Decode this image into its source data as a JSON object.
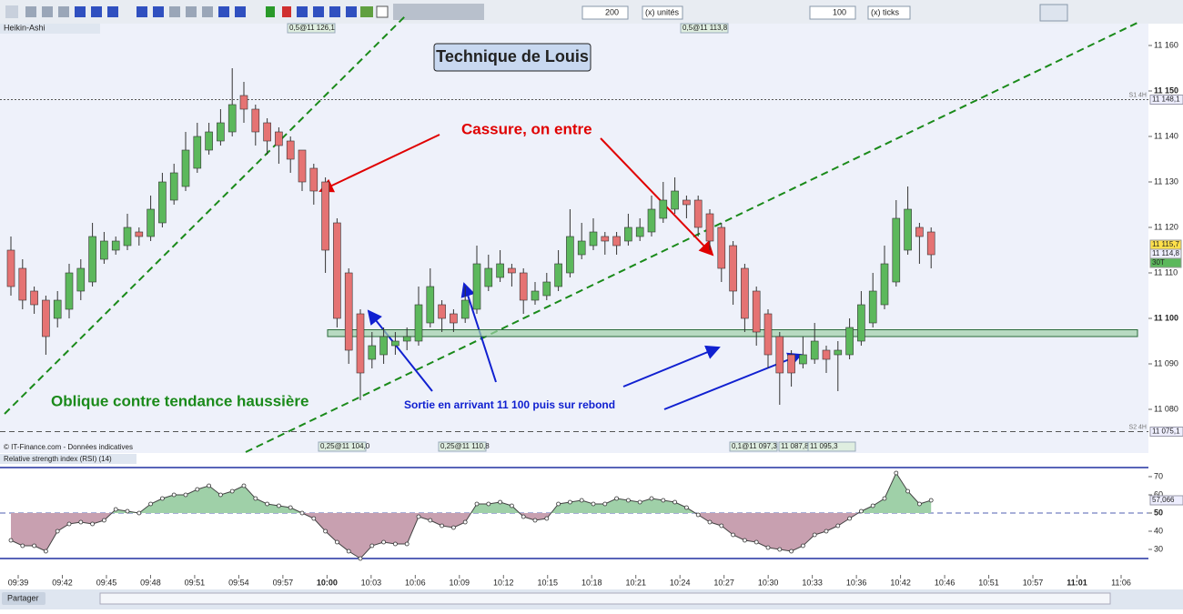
{
  "toolbar": {
    "units_value": "200",
    "units_label": "(x) unités",
    "ticks_value": "100",
    "ticks_label": "(x) ticks"
  },
  "chart_data": {
    "type": "candlestick",
    "name": "Heikin-Ashi",
    "title": "Technique de Louis",
    "annotations": [
      "Cassure, on entre",
      "Oblique contre tendance haussière",
      "Sortie en arrivant 11 100 puis sur rebond"
    ],
    "copyright": "© IT-Finance.com - Données indicatives",
    "order_labels_top": [
      "0,5@11 126,1",
      "0,5@11 113,8"
    ],
    "order_labels_bottom": [
      "0,25@11 104,0",
      "0,25@11 110,8",
      "0,1@11 097,3",
      "11 087,8",
      "11 095,3"
    ],
    "levels": [
      {
        "name": "S1 4H",
        "value": 11148.1,
        "label": "11 148,1"
      },
      {
        "name": "S2 4H",
        "value": 11075.1,
        "label": "11 075,1"
      }
    ],
    "price_labels": [
      "11 115,7",
      "11 114,8",
      "30T"
    ],
    "support_zone": [
      11096,
      11097.5
    ],
    "ylim": [
      11070,
      11165
    ],
    "yticks": [
      {
        "value": 11160,
        "label": "11 160"
      },
      {
        "value": 11150,
        "label": "11 150"
      },
      {
        "value": 11140,
        "label": "11 140"
      },
      {
        "value": 11130,
        "label": "11 130"
      },
      {
        "value": 11120,
        "label": "11 120"
      },
      {
        "value": 11110,
        "label": "11 110"
      },
      {
        "value": 11100,
        "label": "11 100"
      },
      {
        "value": 11090,
        "label": "11 090"
      },
      {
        "value": 11080,
        "label": "11 080"
      }
    ],
    "xticks": [
      "09:39",
      "09:42",
      "09:45",
      "09:48",
      "09:51",
      "09:54",
      "09:57",
      "10:00",
      "10:03",
      "10:06",
      "10:09",
      "10:12",
      "10:15",
      "10:18",
      "10:21",
      "10:24",
      "10:27",
      "10:30",
      "10:33",
      "10:36",
      "10:42",
      "10:46",
      "10:51",
      "10:57",
      "11:01",
      "11:06"
    ],
    "candles": [
      [
        11115,
        11118,
        11105,
        11107
      ],
      [
        11111,
        11113,
        11102,
        11104
      ],
      [
        11106,
        11107,
        11101,
        11103
      ],
      [
        11104,
        11105,
        11092,
        11096
      ],
      [
        11100,
        11106,
        11098,
        11104
      ],
      [
        11102,
        11112,
        11100,
        11110
      ],
      [
        11106,
        11113,
        11104,
        11111
      ],
      [
        11108,
        11121,
        11107,
        11118
      ],
      [
        11113,
        11119,
        11112,
        11117
      ],
      [
        11115,
        11118,
        11114,
        11117
      ],
      [
        11116,
        11123,
        11115,
        11120
      ],
      [
        11119,
        11120,
        11116,
        11118
      ],
      [
        11118,
        11127,
        11117,
        11124
      ],
      [
        11121,
        11132,
        11120,
        11130
      ],
      [
        11126,
        11134,
        11125,
        11132
      ],
      [
        11129,
        11141,
        11128,
        11137
      ],
      [
        11133,
        11143,
        11132,
        11140
      ],
      [
        11137,
        11143,
        11136,
        11141
      ],
      [
        11139,
        11146,
        11138,
        11143
      ],
      [
        11141,
        11155,
        11140,
        11147
      ],
      [
        11149,
        11152,
        11143,
        11146
      ],
      [
        11146,
        11147,
        11138,
        11141
      ],
      [
        11143,
        11144,
        11136,
        11139
      ],
      [
        11141,
        11142,
        11134,
        11138
      ],
      [
        11139,
        11140,
        11132,
        11135
      ],
      [
        11137,
        11137,
        11128,
        11130
      ],
      [
        11133,
        11134,
        11125,
        11128
      ],
      [
        11130,
        11131,
        11110,
        11115
      ],
      [
        11121,
        11122,
        11098,
        11100
      ],
      [
        11110,
        11111,
        11090,
        11093
      ],
      [
        11101,
        11102,
        11082,
        11088
      ],
      [
        11091,
        11097,
        11089,
        11094
      ],
      [
        11092,
        11098,
        11090,
        11096
      ],
      [
        11094,
        11097,
        11092,
        11095
      ],
      [
        11095,
        11098,
        11093,
        11096
      ],
      [
        11095,
        11107,
        11094,
        11103
      ],
      [
        11099,
        11111,
        11098,
        11107
      ],
      [
        11103,
        11104,
        11097,
        11100
      ],
      [
        11101,
        11102,
        11097,
        11099
      ],
      [
        11100,
        11107,
        11099,
        11104
      ],
      [
        11102,
        11116,
        11101,
        11112
      ],
      [
        11107,
        11114,
        11106,
        11111
      ],
      [
        11109,
        11115,
        11108,
        11112
      ],
      [
        11111,
        11112,
        11107,
        11110
      ],
      [
        11110,
        11111,
        11101,
        11104
      ],
      [
        11104,
        11108,
        11103,
        11106
      ],
      [
        11105,
        11110,
        11104,
        11108
      ],
      [
        11107,
        11115,
        11106,
        11112
      ],
      [
        11110,
        11124,
        11109,
        11118
      ],
      [
        11114,
        11121,
        11113,
        11117
      ],
      [
        11116,
        11122,
        11115,
        11119
      ],
      [
        11118,
        11119,
        11114,
        11117
      ],
      [
        11118,
        11119,
        11114,
        11116
      ],
      [
        11117,
        11123,
        11116,
        11120
      ],
      [
        11118,
        11122,
        11117,
        11120
      ],
      [
        11119,
        11127,
        11118,
        11124
      ],
      [
        11122,
        11130,
        11121,
        11126
      ],
      [
        11124,
        11131,
        11123,
        11128
      ],
      [
        11126,
        11127,
        11122,
        11125
      ],
      [
        11126,
        11127,
        11118,
        11120
      ],
      [
        11123,
        11124,
        11115,
        11117
      ],
      [
        11120,
        11121,
        11108,
        11111
      ],
      [
        11116,
        11117,
        11103,
        11106
      ],
      [
        11111,
        11112,
        11097,
        11100
      ],
      [
        11106,
        11107,
        11094,
        11097
      ],
      [
        11101,
        11102,
        11089,
        11092
      ],
      [
        11096,
        11097,
        11081,
        11088
      ],
      [
        11092,
        11093,
        11085,
        11088
      ],
      [
        11090,
        11096,
        11089,
        11092
      ],
      [
        11091,
        11099,
        11090,
        11095
      ],
      [
        11093,
        11094,
        11088,
        11091
      ],
      [
        11092,
        11095,
        11084,
        11093
      ],
      [
        11092,
        11100,
        11091,
        11098
      ],
      [
        11095,
        11106,
        11094,
        11103
      ],
      [
        11099,
        11110,
        11098,
        11106
      ],
      [
        11103,
        11116,
        11102,
        11112
      ],
      [
        11108,
        11126,
        11107,
        11122
      ],
      [
        11115,
        11129,
        11114,
        11124
      ],
      [
        11120,
        11121,
        11112,
        11118
      ],
      [
        11119,
        11120,
        11111,
        11114
      ]
    ],
    "up_color": "#5cb85c",
    "down_color": "#e57373",
    "rsi": {
      "name": "Relative strength index (RSI) (14)",
      "last_label": "57,066",
      "ylim": [
        17,
        77
      ],
      "yticks": [
        30,
        40,
        50,
        60,
        70
      ],
      "bands": [
        25,
        50,
        75
      ],
      "values": [
        35,
        32,
        32,
        29,
        40,
        44,
        45,
        44,
        46,
        52,
        51,
        50,
        55,
        58,
        60,
        60,
        63,
        65,
        60,
        62,
        65,
        58,
        55,
        54,
        53,
        50,
        47,
        40,
        34,
        29,
        25,
        32,
        34,
        33,
        33,
        48,
        46,
        43,
        42,
        45,
        55,
        55,
        56,
        54,
        48,
        46,
        47,
        55,
        56,
        57,
        55,
        55,
        58,
        57,
        56,
        58,
        57,
        56,
        53,
        49,
        45,
        43,
        38,
        35,
        34,
        31,
        30,
        29,
        32,
        38,
        40,
        43,
        47,
        51,
        54,
        58,
        72,
        62,
        55,
        57
      ]
    }
  },
  "footer": {
    "share": "Partager"
  }
}
